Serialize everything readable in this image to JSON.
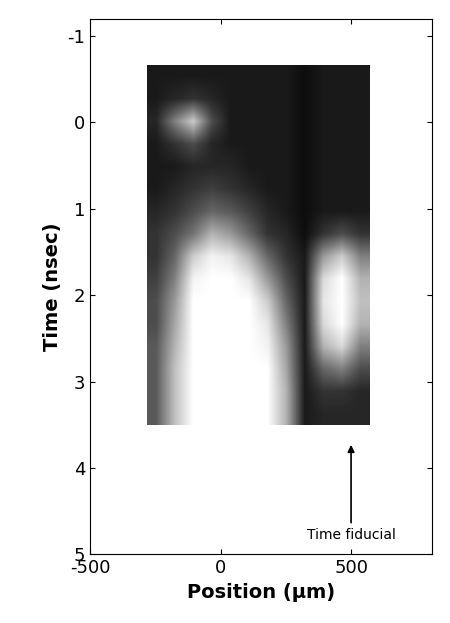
{
  "chart_data": {
    "type": "heatmap",
    "x_label": "Position (µm)",
    "y_label": "Time (nsec)",
    "xlim": [
      -500,
      810
    ],
    "xticks": [
      -500,
      0,
      500
    ],
    "ylim": [
      5,
      -1.2
    ],
    "yticks": [
      -1,
      0,
      1,
      2,
      3,
      4,
      5
    ],
    "color": "gray",
    "color_range": [
      0,
      1
    ],
    "x_edges": [
      -283,
      569
    ],
    "y_edges": [
      -0.66,
      3.5
    ],
    "cells": [
      [
        0.1,
        0.1,
        0.1,
        0.1,
        0.1,
        0.1,
        0.1,
        0.1,
        0.05,
        0.1,
        0.1,
        0.1
      ],
      [
        0.1,
        0.15,
        0.2,
        0.15,
        0.1,
        0.1,
        0.1,
        0.1,
        0.05,
        0.1,
        0.1,
        0.1
      ],
      [
        0.15,
        0.5,
        0.8,
        0.3,
        0.1,
        0.1,
        0.1,
        0.1,
        0.05,
        0.1,
        0.1,
        0.1
      ],
      [
        0.1,
        0.2,
        0.3,
        0.15,
        0.1,
        0.1,
        0.1,
        0.1,
        0.05,
        0.1,
        0.1,
        0.1
      ],
      [
        0.1,
        0.1,
        0.15,
        0.15,
        0.15,
        0.1,
        0.1,
        0.1,
        0.05,
        0.1,
        0.1,
        0.1
      ],
      [
        0.1,
        0.15,
        0.2,
        0.25,
        0.2,
        0.15,
        0.1,
        0.1,
        0.05,
        0.1,
        0.1,
        0.1
      ],
      [
        0.15,
        0.2,
        0.3,
        0.4,
        0.35,
        0.25,
        0.15,
        0.1,
        0.05,
        0.1,
        0.1,
        0.1
      ],
      [
        0.2,
        0.3,
        0.45,
        0.7,
        0.6,
        0.4,
        0.2,
        0.15,
        0.05,
        0.2,
        0.3,
        0.2
      ],
      [
        0.2,
        0.4,
        0.8,
        0.95,
        0.9,
        0.7,
        0.4,
        0.2,
        0.1,
        0.6,
        0.8,
        0.5
      ],
      [
        0.25,
        0.5,
        0.95,
        1,
        1,
        0.9,
        0.6,
        0.3,
        0.1,
        0.85,
        1,
        0.7
      ],
      [
        0.3,
        0.6,
        1,
        1,
        1,
        1,
        0.8,
        0.4,
        0.1,
        0.9,
        1,
        0.75
      ],
      [
        0.3,
        0.65,
        1,
        1,
        1,
        1,
        0.9,
        0.5,
        0.1,
        0.85,
        1,
        0.7
      ],
      [
        0.35,
        0.7,
        1,
        1,
        1,
        1,
        0.95,
        0.6,
        0.1,
        0.7,
        0.85,
        0.5
      ],
      [
        0.35,
        0.75,
        1,
        1,
        1,
        1,
        1,
        0.65,
        0.1,
        0.4,
        0.5,
        0.3
      ],
      [
        0.35,
        0.75,
        1,
        1,
        1,
        1,
        1,
        0.7,
        0.1,
        0.2,
        0.2,
        0.15
      ],
      [
        0.35,
        0.75,
        1,
        1,
        1,
        1,
        1,
        0.7,
        0.1,
        0.15,
        0.15,
        0.15
      ]
    ],
    "annotations": [
      {
        "text": "Time fiducial",
        "x": 500,
        "y": 3.7
      }
    ]
  }
}
